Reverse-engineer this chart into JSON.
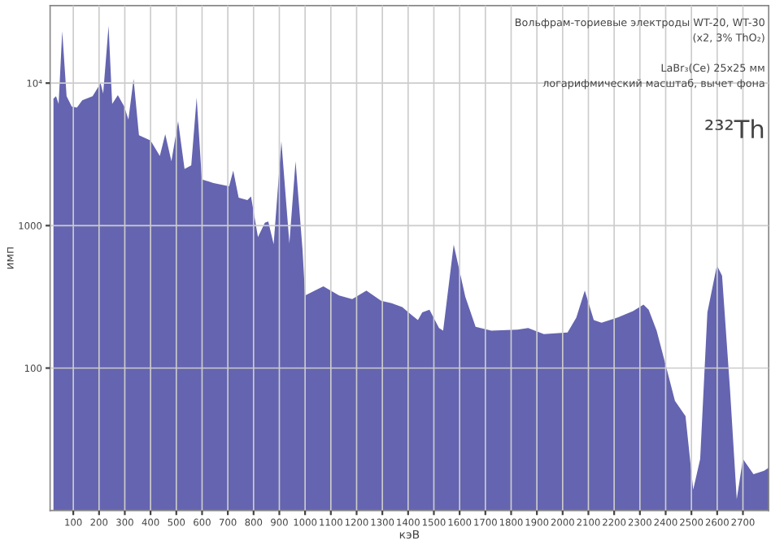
{
  "chart_data": {
    "type": "area",
    "xlabel": "кэВ",
    "ylabel": "имп",
    "annotations": [
      "Вольфрам-ториевые электроды WT-20, WT-30",
      "(x2, 3% ThO₂)",
      "LaBr₃(Ce) 25x25 мм",
      "логарифмический масштаб, вычет фона",
      "²³²Th"
    ],
    "log": "y",
    "grid": true,
    "xlim": [
      10,
      2800
    ],
    "ylim": [
      10,
      35000
    ],
    "xticks": [
      100,
      200,
      300,
      400,
      500,
      600,
      700,
      800,
      900,
      1000,
      1100,
      1200,
      1300,
      1400,
      1500,
      1600,
      1700,
      1800,
      1900,
      2000,
      2100,
      2200,
      2300,
      2400,
      2500,
      2600,
      2700
    ],
    "yticks": [
      100,
      1000,
      {
        "value": 10000,
        "label": "10⁴"
      }
    ],
    "series": [
      {
        "color": "#6464b0",
        "x": [
          23,
          33,
          43,
          57,
          74,
          94,
          114,
          135,
          175,
          206,
          216,
          237,
          251,
          273,
          298,
          314,
          334,
          355,
          400,
          436,
          457,
          481,
          507,
          532,
          558,
          579,
          599,
          644,
          705,
          721,
          742,
          776,
          790,
          817,
          844,
          857,
          878,
          908,
          939,
          963,
          990,
          1000,
          1071,
          1132,
          1183,
          1238,
          1295,
          1336,
          1377,
          1438,
          1455,
          1483,
          1520,
          1536,
          1577,
          1622,
          1662,
          1723,
          1825,
          1866,
          1927,
          2019,
          2053,
          2086,
          2121,
          2151,
          2212,
          2273,
          2314,
          2334,
          2365,
          2405,
          2436,
          2477,
          2507,
          2534,
          2562,
          2599,
          2619,
          2650,
          2676,
          2700,
          2741,
          2782,
          2800
        ],
        "values": [
          7770,
          8100,
          7150,
          23200,
          8100,
          6850,
          6730,
          7580,
          8100,
          10000,
          8450,
          25200,
          7150,
          8240,
          6850,
          5550,
          10700,
          4310,
          3960,
          3080,
          4380,
          2830,
          5410,
          2500,
          2650,
          7900,
          2110,
          1990,
          1890,
          2430,
          1570,
          1510,
          1600,
          830,
          1050,
          1070,
          740,
          3900,
          750,
          2830,
          680,
          323,
          375,
          323,
          305,
          350,
          297,
          285,
          268,
          217,
          246,
          257,
          191,
          183,
          735,
          317,
          195,
          183,
          186,
          191,
          173,
          178,
          226,
          350,
          217,
          208,
          226,
          251,
          279,
          257,
          183,
          97,
          59,
          46,
          14,
          23,
          246,
          526,
          444,
          70,
          12,
          23,
          18,
          19,
          20
        ]
      }
    ]
  }
}
